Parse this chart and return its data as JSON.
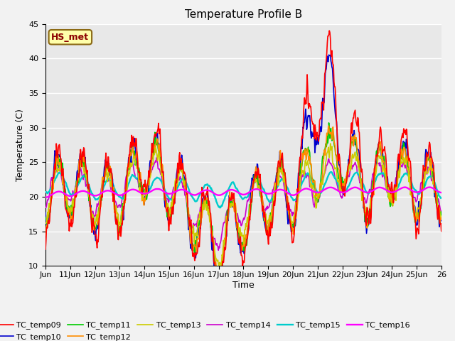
{
  "title": "Temperature Profile B",
  "xlabel": "Time",
  "ylabel": "Temperature (C)",
  "ylim": [
    10,
    45
  ],
  "yticks": [
    10,
    15,
    20,
    25,
    30,
    35,
    40,
    45
  ],
  "xtick_labels": [
    "Jun",
    "11Jun",
    "12Jun",
    "13Jun",
    "14Jun",
    "15Jun",
    "16Jun",
    "17Jun",
    "18Jun",
    "19Jun",
    "20Jun",
    "21Jun",
    "22Jun",
    "23Jun",
    "24Jun",
    "25Jun",
    "26"
  ],
  "annotation_text": "HS_met",
  "annotation_color": "#8B0000",
  "annotation_bg": "#FFFFAA",
  "annotation_border": "#8B6914",
  "series_colors": {
    "TC_temp09": "#FF0000",
    "TC_temp10": "#0000CD",
    "TC_temp11": "#00CC00",
    "TC_temp12": "#FF8C00",
    "TC_temp13": "#CCCC00",
    "TC_temp14": "#CC00CC",
    "TC_temp15": "#00CCCC",
    "TC_temp16": "#FF00FF"
  },
  "bg_color": "#E8E8E8",
  "grid_color": "#FFFFFF",
  "title_fontsize": 11,
  "label_fontsize": 9,
  "tick_fontsize": 8,
  "legend_fontsize": 8,
  "line_width": 1.2
}
